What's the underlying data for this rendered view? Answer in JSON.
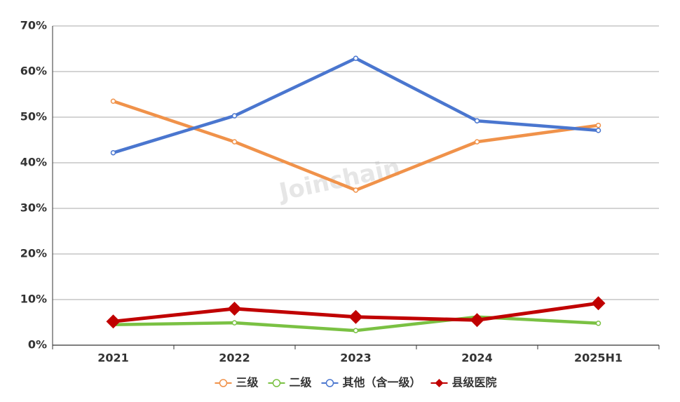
{
  "chart_data": {
    "type": "line",
    "watermark": "Joinchain",
    "categories": [
      "2021",
      "2022",
      "2023",
      "2024",
      "2025H1"
    ],
    "series": [
      {
        "name": "三级",
        "color": "#f0924a",
        "marker": "circle",
        "values": [
          53.5,
          44.6,
          34.0,
          44.6,
          48.2
        ]
      },
      {
        "name": "二级",
        "color": "#7ac143",
        "marker": "circle",
        "values": [
          4.5,
          4.9,
          3.2,
          6.2,
          4.8
        ]
      },
      {
        "name": "其他（含一级）",
        "color": "#4a76cf",
        "marker": "circle",
        "values": [
          42.2,
          50.3,
          62.9,
          49.2,
          47.1
        ]
      },
      {
        "name": "县级医院",
        "color": "#c00000",
        "marker": "diamond",
        "values": [
          5.2,
          8.0,
          6.2,
          5.5,
          9.2
        ]
      }
    ],
    "ylim": [
      0,
      70
    ],
    "yticks": [
      {
        "value": 0,
        "label": "0%"
      },
      {
        "value": 10,
        "label": "10%"
      },
      {
        "value": 20,
        "label": "20%"
      },
      {
        "value": 30,
        "label": "30%"
      },
      {
        "value": 40,
        "label": "40%"
      },
      {
        "value": 50,
        "label": "50%"
      },
      {
        "value": 60,
        "label": "60%"
      },
      {
        "value": 70,
        "label": "70%"
      }
    ],
    "grid": true,
    "legend": "bottom"
  }
}
